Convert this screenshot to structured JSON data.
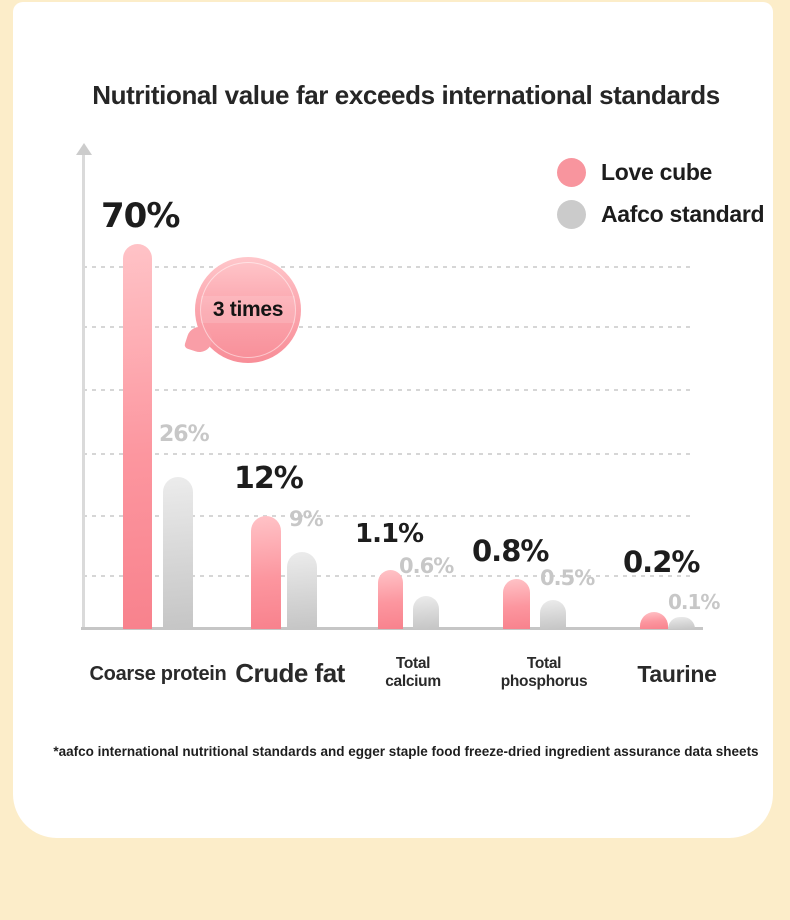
{
  "title": "Nutritional value far exceeds international standards",
  "legend": {
    "items": [
      {
        "label": "Love cube",
        "color": "#f8959e"
      },
      {
        "label": "Aafco standard",
        "color": "#cbcbcb"
      }
    ]
  },
  "footnote": "*aafco international nutritional standards and egger staple food freeze-dried ingredient assurance data sheets",
  "colors": {
    "love_cube_bar": "#f8828d",
    "aafco_bar": "#c5c5c5",
    "background": "#fcedc9",
    "card": "#ffffff",
    "gray_label": "#c7c7c7",
    "black_label": "#1d1d1d"
  },
  "chart_data": {
    "type": "bar",
    "categories": [
      "Coarse protein",
      "Crude fat",
      "Total\ncalcium",
      "Total\nphosphorus",
      "Taurine"
    ],
    "series": [
      {
        "name": "Love cube",
        "values": [
          70,
          12,
          1.1,
          0.8,
          0.2
        ],
        "labels": [
          "70%",
          "12%",
          "1.1%",
          "0.8%",
          "0.2%"
        ],
        "color": "#f8828d"
      },
      {
        "name": "Aafco standard",
        "values": [
          26,
          9,
          0.6,
          0.5,
          0.1
        ],
        "labels": [
          "26%",
          "9%",
          "0.6%",
          "0.5%",
          "0.1%"
        ],
        "color": "#c5c5c5"
      }
    ],
    "value_unit": "%",
    "title": "Nutritional value far exceeds international standards",
    "xlabel": "",
    "ylabel": "",
    "grid": "6 dashed horizontal gridlines, y-axis arrow, no numeric ticks",
    "legend_position": "top-right",
    "annotations": [
      {
        "text": "3 times",
        "note": "pink speech-bubble badge near the Coarse protein bar"
      }
    ],
    "bar_scale_note": "bar heights are stylized, not to a linear scale"
  }
}
